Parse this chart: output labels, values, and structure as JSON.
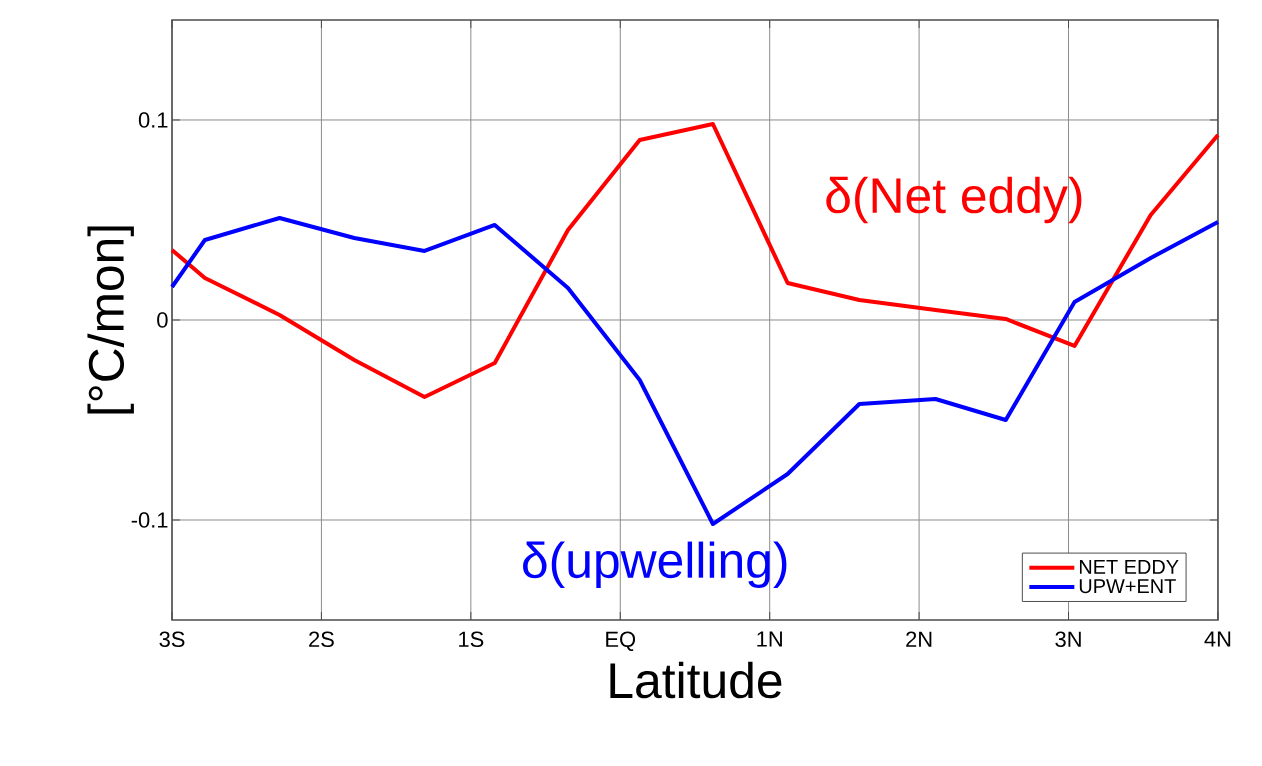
{
  "chart_data": {
    "type": "line",
    "xlabel": "Latitude",
    "ylabel": "[°C/mon]",
    "xlim": [
      -3,
      4
    ],
    "ylim": [
      -0.15,
      0.15
    ],
    "xticks": [
      {
        "value": -3,
        "label": "3S"
      },
      {
        "value": -2,
        "label": "2S"
      },
      {
        "value": -1,
        "label": "1S"
      },
      {
        "value": 0,
        "label": "EQ"
      },
      {
        "value": 1,
        "label": "1N"
      },
      {
        "value": 2,
        "label": "2N"
      },
      {
        "value": 3,
        "label": "3N"
      },
      {
        "value": 4,
        "label": "4N"
      }
    ],
    "yticks": [
      -0.1,
      0,
      0.1
    ],
    "grid": true,
    "legend": "bottom right",
    "x": [
      -3,
      -2.78,
      -2.28,
      -1.78,
      -1.31,
      -0.84,
      -0.35,
      0.13,
      0.62,
      1.12,
      1.6,
      2.11,
      2.58,
      3.04,
      3.55,
      4
    ],
    "series": [
      {
        "name": "NET EDDY",
        "color": "#ff0000",
        "values": [
          0.035,
          0.021,
          0.0025,
          -0.02,
          -0.0385,
          -0.0215,
          0.045,
          0.09,
          0.098,
          0.0185,
          0.01,
          0.005,
          0.0005,
          -0.013,
          0.0525,
          0.0925
        ]
      },
      {
        "name": "UPW+ENT",
        "color": "#0000ff",
        "values": [
          0.0165,
          0.04,
          0.051,
          0.041,
          0.0345,
          0.0475,
          0.016,
          -0.03,
          -0.102,
          -0.077,
          -0.042,
          -0.0395,
          -0.05,
          0.009,
          0.031,
          0.049
        ]
      }
    ],
    "annotations": [
      "δ(Net eddy)",
      "δ(upwelling)"
    ]
  }
}
